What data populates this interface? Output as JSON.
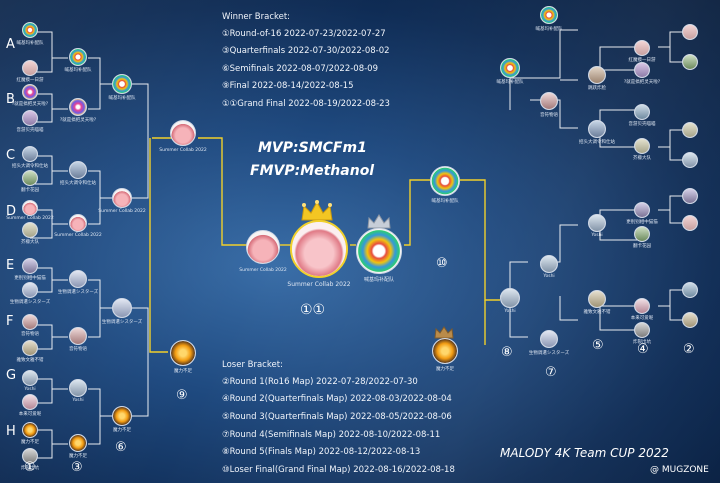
{
  "winner_bracket": {
    "title": "Winner Bracket:",
    "rounds": [
      "①Round-of-16  2022-07-23/2022-07-27",
      "③Quarterfinals 2022-07-30/2022-08-02",
      "⑥Semifinals 2022-08-07/2022-08-09",
      "⑨Final 2022-08-14/2022-08-15",
      "①①Grand Final  2022-08-19/2022-08-23"
    ]
  },
  "loser_bracket": {
    "title": "Loser Bracket:",
    "rounds": [
      "②Round 1(Ro16 Map)  2022-07-28/2022-07-30",
      "④Round 2(Quarterfinals Map) 2022-08-03/2022-08-04",
      "⑤Round 3(Quarterfinals Map) 2022-08-05/2022-08-06",
      "⑦Round 4(Semifinals Map) 2022-08-10/2022-08-11",
      "⑧Round 5(Finals Map) 2022-08-12/2022-08-13",
      "⑩Loser Final(Grand Final Map) 2022-08-16/2022-08-18"
    ]
  },
  "mvp": "MVP:SMCFm1",
  "fmvp": "FMVP:Methanol",
  "grand_final_label": "①①",
  "brand": {
    "title": "MALODY 4K Team CUP 2022",
    "sub": "@ MUGZONE"
  },
  "seeds": [
    "A",
    "B",
    "C",
    "D",
    "E",
    "F",
    "G",
    "H"
  ],
  "left_round_numbers": [
    "①",
    "③",
    "⑥",
    "⑨"
  ],
  "right_round_numbers": [
    "②",
    "④",
    "⑤",
    "⑦",
    "⑧",
    "⑩"
  ],
  "team_labels": {
    "summer_collab": "Summer Collab 2022",
    "summer_collab_center": "Summer Collab 2022",
    "champion_team": "喊基玛补配队",
    "loser_final_team": "魔力不足",
    "yoshi": "Yoshi"
  },
  "small_labels": {
    "a1": "喊基玛补配队",
    "a2": "红魔摸一日游",
    "a_w": "喊基玛补配队",
    "b1": "?就是搞把灵天啦?",
    "b2": "音游贝壳喵喵",
    "b_w": "?就是搞把灵天啦?",
    "ab_w": "喊基玛补配队",
    "c1": "招头大调令和仕站",
    "c2": "翻卡花园",
    "c_w": "招头大调令和仕站",
    "d1": "Summer Collab 2022",
    "d2": "芥檬大队",
    "d_w": "Summer Collab 2022",
    "cd_w": "Summer Collab 2022",
    "e1": "更别别相中猫猫",
    "e2": "生物调遣シスターズ",
    "e_w": "生物调遣シスターズ",
    "f1": "音符物语",
    "f2": "雅致文雅不错",
    "f_w": "音符物语",
    "ef_w": "生物调遣シスターズ",
    "g1": "Yoshi",
    "g2": "本来可爱呢",
    "g_w": "Yoshi",
    "h1": "魔力不足",
    "h2": "炸裂出坑",
    "h_w": "魔力不足",
    "gh_w": "魔力不足",
    "lf_l": "魔力不足",
    "r_top": "喊基玛补配队",
    "r_a": "喊基玛补配队",
    "r_b": "音符物语",
    "r_c": "招头大调令和仕站",
    "r_d": "Yoshi",
    "r_e": "跳跃炸脸",
    "r_f": "雅致文雅不错",
    "r_g": "生物调遣シスターズ",
    "r_h": "红魔摸一日游",
    "r_i": "?就是搞把灵天啦?",
    "r_j": "音游贝壳喵喵",
    "r_k": "芥檬大队",
    "r_l": "更别别相中猫猫",
    "r_m": "翻卡花园",
    "r_n": "本来可爱呢",
    "r_o": "炸裂出坑",
    "r_p": "Yoshi"
  },
  "colors": {
    "line": "#f1d02b",
    "line_dim": "#ffffff",
    "gold": "#f3c623",
    "silver": "#c7ced8",
    "bronze": "#b98b4a"
  }
}
